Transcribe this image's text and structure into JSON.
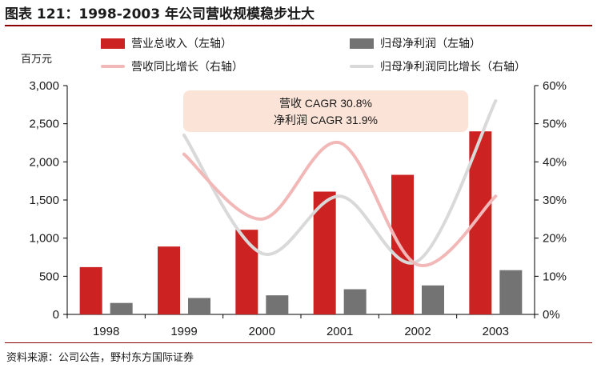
{
  "title": "图表 121：1998-2003 年公司营收规模稳步壮大",
  "unit_label": "百万元",
  "source": "资料来源：公司公告，野村东方国际证券",
  "legend": [
    {
      "label": "营业总收入（左轴）",
      "kind": "bar",
      "color": "#cc2222"
    },
    {
      "label": "归母净利润（左轴）",
      "kind": "bar",
      "color": "#737373"
    },
    {
      "label": "营收同比增长（右轴）",
      "kind": "line",
      "color": "#f2b8b8"
    },
    {
      "label": "归母净利润同比增长（右轴）",
      "kind": "line",
      "color": "#d9d9d9"
    }
  ],
  "annotation": {
    "line1": "营收 CAGR 30.8%",
    "line2": "净利润 CAGR 31.9%"
  },
  "chart_data": {
    "type": "bar",
    "title": "1998-2003 年公司营收规模稳步壮大",
    "categories": [
      "1998",
      "1999",
      "2000",
      "2001",
      "2002",
      "2003"
    ],
    "left_axis": {
      "label": "百万元",
      "min": 0,
      "max": 3000,
      "ticks": [
        "0",
        "500",
        "1,000",
        "1,500",
        "2,000",
        "2,500",
        "3,000"
      ]
    },
    "right_axis": {
      "min": 0,
      "max": 60,
      "ticks": [
        "0%",
        "10%",
        "20%",
        "30%",
        "40%",
        "50%",
        "60%"
      ]
    },
    "bar_series": [
      {
        "name": "营业总收入（左轴）",
        "values": [
          620,
          890,
          1110,
          1610,
          1830,
          2400
        ],
        "color": "#cc2222"
      },
      {
        "name": "归母净利润（左轴）",
        "values": [
          150,
          215,
          250,
          330,
          380,
          580
        ],
        "color": "#737373"
      }
    ],
    "line_series": [
      {
        "name": "营收同比增长（右轴）",
        "values": [
          42,
          25,
          45,
          13,
          31
        ],
        "color": "#f2b8b8"
      },
      {
        "name": "归母净利润同比增长（右轴）",
        "values": [
          47,
          16,
          31,
          14,
          56
        ],
        "color": "#d9d9d9"
      }
    ],
    "line_categories": [
      "1999",
      "2000",
      "2001",
      "2002",
      "2003"
    ],
    "grid": false,
    "legend_position": "top"
  }
}
